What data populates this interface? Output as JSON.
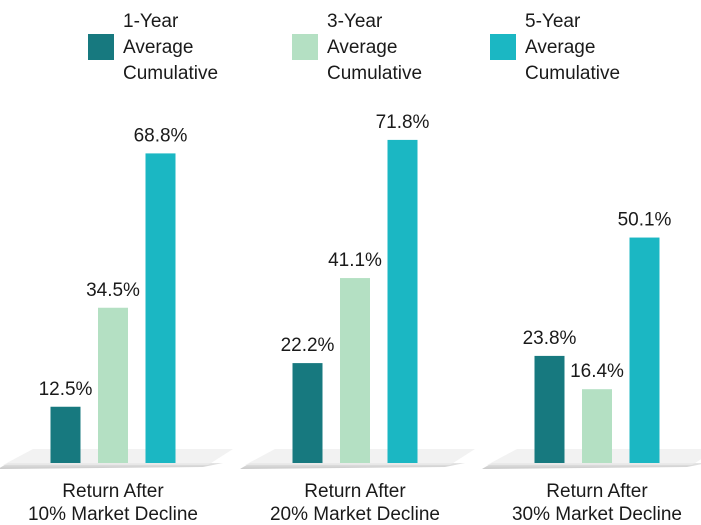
{
  "chart_data": {
    "type": "bar",
    "categories": [
      "Return After\n10% Market Decline",
      "Return After\n20% Market Decline",
      "Return After\n30% Market Decline"
    ],
    "series": [
      {
        "name": "1-Year\nAverage\nCumulative",
        "color": "#17797f",
        "values": [
          12.5,
          22.2,
          23.8
        ],
        "value_labels": [
          "12.5%",
          "22.2%",
          "23.8%"
        ]
      },
      {
        "name": "3-Year\nAverage\nCumulative",
        "color": "#b4e0c3",
        "values": [
          34.5,
          41.1,
          16.4
        ],
        "value_labels": [
          "34.5%",
          "41.1%",
          "16.4%"
        ]
      },
      {
        "name": "5-Year\nAverage\nCumulative",
        "color": "#1bb7c3",
        "values": [
          68.8,
          71.8,
          50.1
        ],
        "value_labels": [
          "68.8%",
          "71.8%",
          "50.1%"
        ]
      }
    ],
    "legend": "top"
  }
}
